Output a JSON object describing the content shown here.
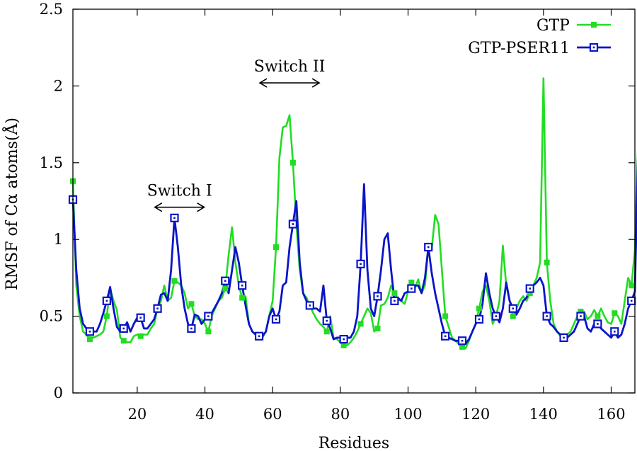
{
  "chart_data": {
    "type": "line",
    "xlabel": "Residues",
    "ylabel": "RMSF of Cα atoms(Å)",
    "xlim": [
      1,
      167
    ],
    "ylim": [
      0,
      2.5
    ],
    "x_ticks": [
      20,
      40,
      60,
      80,
      100,
      120,
      140,
      160
    ],
    "x_tick_labels": [
      "20",
      "40",
      "60",
      "80",
      "100",
      "120",
      "140",
      "160"
    ],
    "y_ticks": [
      0,
      0.5,
      1,
      1.5,
      2,
      2.5
    ],
    "y_tick_labels": [
      "0",
      "0.5",
      "1",
      "1.5",
      "2",
      "2.5"
    ],
    "legend_position": "top-right",
    "grid": false,
    "annotations": [
      {
        "label": "Switch I",
        "from": 25,
        "to": 40,
        "y": 1.21
      },
      {
        "label": "Switch II",
        "from": 56,
        "to": 74,
        "y": 2.02
      }
    ],
    "series": [
      {
        "name": "GTP",
        "color": "#22dd22",
        "marker": "filled-square",
        "marker_every": 5,
        "values": [
          1.38,
          0.7,
          0.5,
          0.4,
          0.38,
          0.35,
          0.36,
          0.37,
          0.38,
          0.4,
          0.5,
          0.68,
          0.6,
          0.54,
          0.36,
          0.34,
          0.33,
          0.33,
          0.37,
          0.38,
          0.37,
          0.38,
          0.38,
          0.42,
          0.45,
          0.55,
          0.6,
          0.7,
          0.6,
          0.62,
          0.73,
          0.72,
          0.7,
          0.65,
          0.55,
          0.58,
          0.5,
          0.48,
          0.48,
          0.45,
          0.4,
          0.5,
          0.55,
          0.6,
          0.62,
          0.68,
          0.9,
          1.08,
          0.85,
          0.7,
          0.62,
          0.63,
          0.45,
          0.4,
          0.38,
          0.36,
          0.36,
          0.4,
          0.5,
          0.6,
          0.95,
          1.53,
          1.73,
          1.74,
          1.81,
          1.5,
          1.1,
          0.8,
          0.65,
          0.62,
          0.57,
          0.52,
          0.48,
          0.45,
          0.43,
          0.4,
          0.5,
          0.36,
          0.35,
          0.33,
          0.31,
          0.31,
          0.33,
          0.36,
          0.4,
          0.45,
          0.5,
          0.55,
          0.52,
          0.4,
          0.42,
          0.57,
          0.58,
          0.62,
          0.7,
          0.65,
          0.61,
          0.6,
          0.58,
          0.66,
          0.72,
          0.68,
          0.74,
          0.65,
          0.7,
          0.95,
          0.94,
          1.16,
          1.1,
          0.8,
          0.5,
          0.43,
          0.36,
          0.34,
          0.32,
          0.3,
          0.29,
          0.34,
          0.4,
          0.45,
          0.55,
          0.66,
          0.7,
          0.6,
          0.45,
          0.5,
          0.6,
          0.96,
          0.7,
          0.6,
          0.5,
          0.55,
          0.6,
          0.63,
          0.6,
          0.65,
          0.7,
          0.75,
          0.85,
          2.05,
          0.85,
          0.6,
          0.45,
          0.4,
          0.37,
          0.36,
          0.38,
          0.4,
          0.45,
          0.5,
          0.53,
          0.53,
          0.48,
          0.5,
          0.54,
          0.5,
          0.55,
          0.5,
          0.46,
          0.45,
          0.52,
          0.5,
          0.45,
          0.6,
          0.75,
          0.7,
          0.93,
          1.66
        ]
      },
      {
        "name": "GTP-PSER11",
        "color": "#0a14c8",
        "marker": "open-square",
        "marker_every": 5,
        "values": [
          1.26,
          0.8,
          0.55,
          0.45,
          0.42,
          0.4,
          0.4,
          0.4,
          0.45,
          0.52,
          0.6,
          0.69,
          0.55,
          0.43,
          0.4,
          0.42,
          0.46,
          0.4,
          0.45,
          0.49,
          0.49,
          0.42,
          0.42,
          0.45,
          0.48,
          0.55,
          0.64,
          0.65,
          0.6,
          0.8,
          1.14,
          0.95,
          0.7,
          0.55,
          0.45,
          0.42,
          0.51,
          0.5,
          0.45,
          0.48,
          0.5,
          0.52,
          0.56,
          0.6,
          0.65,
          0.73,
          0.65,
          0.8,
          0.95,
          0.85,
          0.7,
          0.57,
          0.45,
          0.4,
          0.38,
          0.37,
          0.37,
          0.4,
          0.5,
          0.55,
          0.48,
          0.53,
          0.7,
          0.72,
          0.95,
          1.1,
          1.25,
          0.85,
          0.65,
          0.6,
          0.57,
          0.55,
          0.55,
          0.53,
          0.7,
          0.47,
          0.42,
          0.35,
          0.36,
          0.36,
          0.35,
          0.36,
          0.36,
          0.4,
          0.5,
          0.84,
          1.36,
          0.8,
          0.55,
          0.5,
          0.63,
          0.8,
          1.0,
          1.04,
          0.8,
          0.6,
          0.62,
          0.6,
          0.65,
          0.66,
          0.68,
          0.7,
          0.7,
          0.65,
          0.75,
          0.95,
          0.78,
          0.65,
          0.55,
          0.45,
          0.37,
          0.36,
          0.35,
          0.34,
          0.34,
          0.34,
          0.32,
          0.35,
          0.4,
          0.45,
          0.48,
          0.58,
          0.78,
          0.65,
          0.55,
          0.5,
          0.46,
          0.55,
          0.72,
          0.6,
          0.55,
          0.51,
          0.55,
          0.6,
          0.62,
          0.68,
          0.7,
          0.72,
          0.75,
          0.7,
          0.5,
          0.45,
          0.43,
          0.4,
          0.38,
          0.36,
          0.36,
          0.38,
          0.4,
          0.45,
          0.5,
          0.5,
          0.42,
          0.4,
          0.45,
          0.45,
          0.42,
          0.4,
          0.38,
          0.36,
          0.4,
          0.36,
          0.38,
          0.45,
          0.55,
          0.6,
          0.66,
          1.62
        ]
      }
    ]
  }
}
